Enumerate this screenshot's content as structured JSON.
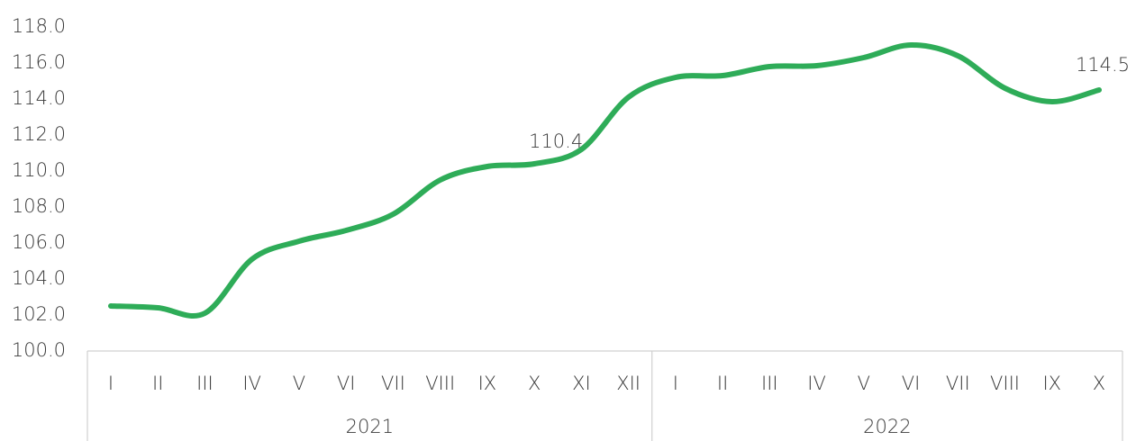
{
  "chart_data": {
    "type": "line",
    "category_groups": [
      {
        "name": "2021",
        "categories": [
          "I",
          "II",
          "III",
          "IV",
          "V",
          "VI",
          "VII",
          "VIII",
          "IX",
          "X",
          "XI",
          "XII"
        ]
      },
      {
        "name": "2022",
        "categories": [
          "I",
          "II",
          "III",
          "IV",
          "V",
          "VI",
          "VII",
          "VIII",
          "IX",
          "X"
        ]
      }
    ],
    "series": [
      {
        "color": "#2eac58",
        "values": [
          102.5,
          102.4,
          102.1,
          105.1,
          106.1,
          106.7,
          107.6,
          109.5,
          110.25,
          110.4,
          111.2,
          114.1,
          115.2,
          115.3,
          115.8,
          115.85,
          116.3,
          117.0,
          116.4,
          114.6,
          113.85,
          114.5
        ],
        "value_labels": [
          null,
          null,
          null,
          null,
          null,
          null,
          null,
          null,
          null,
          "110.4",
          null,
          null,
          null,
          null,
          null,
          null,
          null,
          null,
          null,
          null,
          null,
          "114.5"
        ]
      }
    ],
    "ylim": [
      100,
      118
    ],
    "yticks": [
      {
        "value": 100,
        "label": "100.0"
      },
      {
        "value": 102,
        "label": "102.0"
      },
      {
        "value": 104,
        "label": "104.0"
      },
      {
        "value": 106,
        "label": "106.0"
      },
      {
        "value": 108,
        "label": "108.0"
      },
      {
        "value": 110,
        "label": "110.0"
      },
      {
        "value": 112,
        "label": "112.0"
      },
      {
        "value": 114,
        "label": "114.0"
      },
      {
        "value": 116,
        "label": "116.0"
      },
      {
        "value": 118,
        "label": "118.0"
      }
    ],
    "grid": false
  }
}
